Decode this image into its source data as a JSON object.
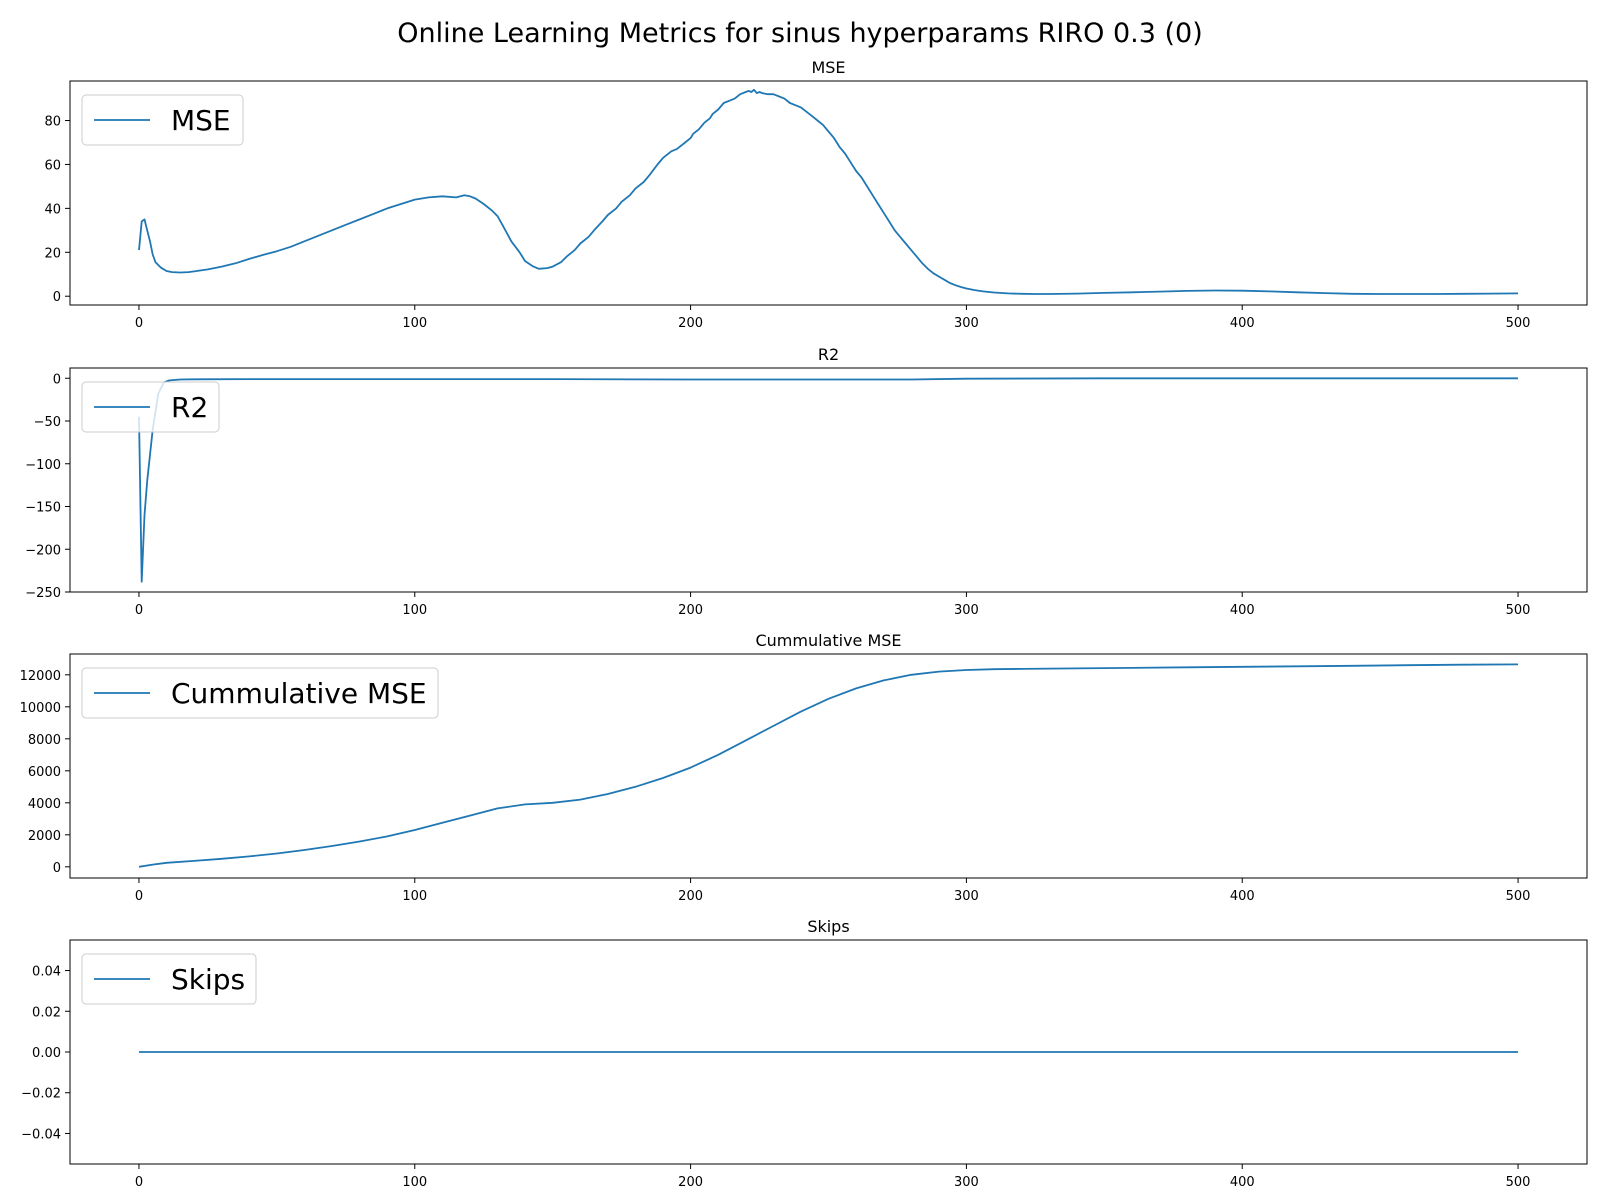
{
  "figure": {
    "title": "Online Learning Metrics for sinus hyperparams RIRO 0.3 (0)",
    "line_color": "#1f77b4"
  },
  "chart_data": [
    {
      "type": "line",
      "title": "MSE",
      "xlabel": "",
      "ylabel": "",
      "xlim": [
        -25,
        525
      ],
      "ylim": [
        -4,
        98
      ],
      "xticks": [
        0,
        100,
        200,
        300,
        400,
        500
      ],
      "xtick_labels": [
        "0",
        "100",
        "200",
        "300",
        "400",
        "500"
      ],
      "yticks": [
        0,
        20,
        40,
        60,
        80
      ],
      "ytick_labels": [
        "0",
        "20",
        "40",
        "60",
        "80"
      ],
      "grid": false,
      "legend_position": "upper-left",
      "series": [
        {
          "name": "MSE",
          "x": [
            0,
            1,
            2,
            3,
            4,
            5,
            6,
            8,
            10,
            12,
            15,
            18,
            20,
            25,
            30,
            35,
            40,
            45,
            50,
            55,
            60,
            65,
            70,
            75,
            80,
            85,
            90,
            95,
            100,
            105,
            110,
            115,
            118,
            120,
            122,
            125,
            128,
            130,
            132,
            135,
            138,
            140,
            143,
            145,
            148,
            150,
            153,
            155,
            158,
            160,
            163,
            165,
            168,
            170,
            173,
            175,
            178,
            180,
            183,
            185,
            188,
            190,
            193,
            195,
            198,
            200,
            201,
            203,
            205,
            207,
            208,
            210,
            212,
            214,
            216,
            218,
            220,
            221,
            222,
            223,
            224,
            225,
            226,
            228,
            230,
            232,
            234,
            236,
            238,
            240,
            242,
            244,
            246,
            248,
            250,
            252,
            254,
            256,
            258,
            260,
            262,
            264,
            266,
            268,
            270,
            272,
            274,
            276,
            278,
            280,
            282,
            284,
            286,
            288,
            290,
            292,
            294,
            296,
            298,
            300,
            303,
            306,
            310,
            315,
            320,
            325,
            330,
            340,
            350,
            360,
            370,
            380,
            390,
            400,
            410,
            420,
            430,
            440,
            450,
            460,
            470,
            480,
            490,
            500
          ],
          "values": [
            21,
            34,
            35,
            30,
            25,
            19,
            15.5,
            13,
            11.5,
            11,
            10.8,
            11,
            11.3,
            12.2,
            13.5,
            15,
            17,
            18.8,
            20.5,
            22.5,
            25,
            27.5,
            30,
            32.5,
            35,
            37.5,
            40,
            42,
            44,
            45,
            45.5,
            45,
            46,
            45.5,
            44.5,
            42,
            39,
            36.5,
            32,
            25,
            20,
            16,
            13.5,
            12.5,
            12.8,
            13.5,
            15.5,
            18,
            21,
            24,
            27,
            30,
            34,
            37,
            40,
            43,
            46,
            49,
            52,
            55,
            60,
            63,
            66,
            67,
            70,
            72,
            74,
            76,
            79,
            81,
            83,
            85,
            88,
            89,
            90,
            92,
            93,
            93.5,
            93,
            94,
            92.5,
            93,
            92.5,
            92,
            92,
            91,
            90,
            88,
            87,
            86,
            84,
            82,
            80,
            78,
            75,
            72,
            68,
            65,
            61,
            57,
            54,
            50,
            46,
            42,
            38,
            34,
            30,
            27,
            24,
            21,
            18,
            15,
            12.5,
            10.5,
            9,
            7.5,
            6,
            5,
            4.2,
            3.5,
            2.8,
            2.2,
            1.7,
            1.3,
            1.1,
            1.0,
            1.0,
            1.2,
            1.5,
            1.8,
            2.1,
            2.4,
            2.6,
            2.5,
            2.2,
            1.8,
            1.4,
            1.1,
            1.0,
            1.0,
            1.0,
            1.1,
            1.2,
            1.3
          ]
        }
      ]
    },
    {
      "type": "line",
      "title": "R2",
      "xlabel": "",
      "ylabel": "",
      "xlim": [
        -25,
        525
      ],
      "ylim": [
        -250,
        12
      ],
      "xticks": [
        0,
        100,
        200,
        300,
        400,
        500
      ],
      "xtick_labels": [
        "0",
        "100",
        "200",
        "300",
        "400",
        "500"
      ],
      "yticks": [
        0,
        -50,
        -100,
        -150,
        -200,
        -250
      ],
      "ytick_labels": [
        "0",
        "−50",
        "−100",
        "−150",
        "−200",
        "−250"
      ],
      "grid": false,
      "legend_position": "upper-left",
      "series": [
        {
          "name": "R2",
          "x": [
            0,
            1,
            2,
            3,
            5,
            7,
            9,
            11,
            15,
            20,
            40,
            100,
            150,
            200,
            250,
            280,
            300,
            350,
            400,
            450,
            500
          ],
          "values": [
            -45,
            -238,
            -160,
            -120,
            -60,
            -18,
            -5,
            -2.5,
            -1.5,
            -1.2,
            -1,
            -1,
            -1,
            -1.5,
            -1.5,
            -1.5,
            -0.5,
            0,
            0,
            0,
            0
          ]
        }
      ]
    },
    {
      "type": "line",
      "title": "Cummulative MSE",
      "xlabel": "",
      "ylabel": "",
      "xlim": [
        -25,
        525
      ],
      "ylim": [
        -700,
        13300
      ],
      "xticks": [
        0,
        100,
        200,
        300,
        400,
        500
      ],
      "xtick_labels": [
        "0",
        "100",
        "200",
        "300",
        "400",
        "500"
      ],
      "yticks": [
        0,
        2000,
        4000,
        6000,
        8000,
        10000,
        12000
      ],
      "ytick_labels": [
        "0",
        "2000",
        "4000",
        "6000",
        "8000",
        "10000",
        "12000"
      ],
      "grid": false,
      "legend_position": "upper-left",
      "series": [
        {
          "name": "Cummulative MSE",
          "x": [
            0,
            5,
            10,
            20,
            30,
            40,
            50,
            60,
            70,
            80,
            90,
            100,
            110,
            120,
            130,
            140,
            150,
            160,
            170,
            180,
            190,
            200,
            210,
            220,
            230,
            240,
            250,
            260,
            270,
            280,
            290,
            300,
            310,
            320,
            340,
            360,
            380,
            400,
            420,
            440,
            460,
            480,
            500
          ],
          "values": [
            0,
            140,
            250,
            370,
            500,
            650,
            830,
            1050,
            1300,
            1580,
            1900,
            2300,
            2750,
            3200,
            3650,
            3900,
            4000,
            4200,
            4550,
            5000,
            5550,
            6200,
            7000,
            7900,
            8800,
            9700,
            10500,
            11150,
            11650,
            12000,
            12200,
            12300,
            12350,
            12370,
            12400,
            12430,
            12470,
            12500,
            12530,
            12560,
            12600,
            12630,
            12650
          ]
        }
      ]
    },
    {
      "type": "line",
      "title": "Skips",
      "xlabel": "",
      "ylabel": "",
      "xlim": [
        -25,
        525
      ],
      "ylim": [
        -0.055,
        0.055
      ],
      "xticks": [
        0,
        100,
        200,
        300,
        400,
        500
      ],
      "xtick_labels": [
        "0",
        "100",
        "200",
        "300",
        "400",
        "500"
      ],
      "yticks": [
        0.04,
        0.02,
        0.0,
        -0.02,
        -0.04
      ],
      "ytick_labels": [
        "0.04",
        "0.02",
        "0.00",
        "−0.02",
        "−0.04"
      ],
      "grid": false,
      "legend_position": "upper-left",
      "series": [
        {
          "name": "Skips",
          "x": [
            0,
            500
          ],
          "values": [
            0,
            0
          ]
        }
      ]
    }
  ]
}
